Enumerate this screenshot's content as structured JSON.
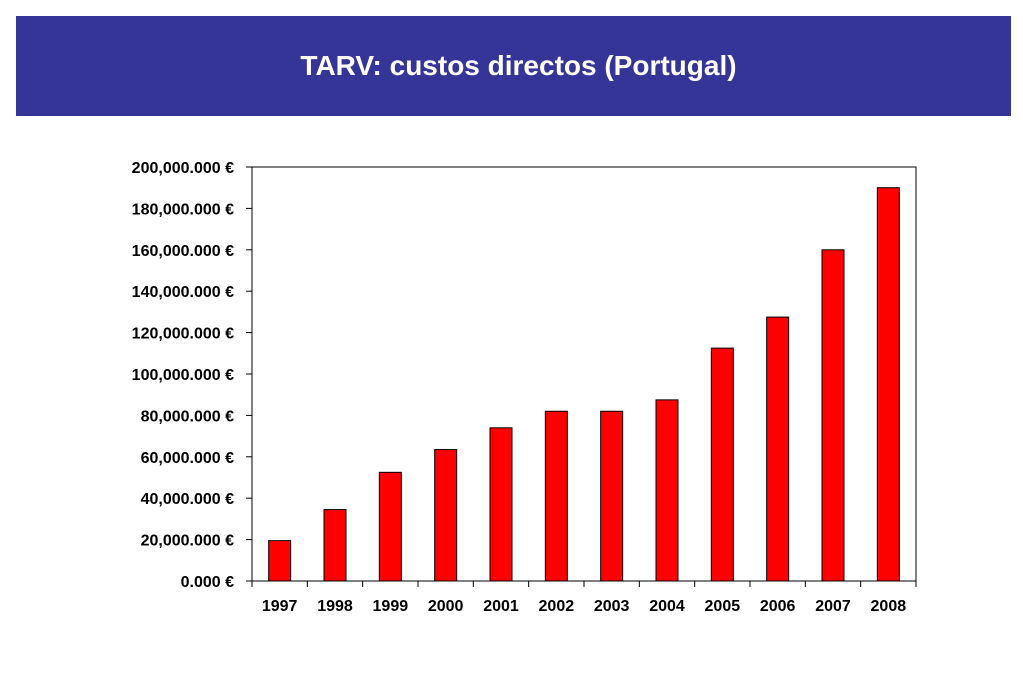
{
  "header": {
    "title": "TARV: custos directos (Portugal)"
  },
  "colors": {
    "banner": "#353598",
    "bar_fill": "#ff0000",
    "bar_stroke": "#000000"
  },
  "chart_data": {
    "type": "bar",
    "categories": [
      "1997",
      "1998",
      "1999",
      "2000",
      "2001",
      "2002",
      "2003",
      "2004",
      "2005",
      "2006",
      "2007",
      "2008"
    ],
    "values": [
      19500,
      34500,
      52500,
      63500,
      74000,
      82000,
      82000,
      87500,
      112500,
      127500,
      160000,
      190000
    ],
    "ylim": [
      0,
      200000
    ],
    "yticks": [
      0,
      20000,
      40000,
      60000,
      80000,
      100000,
      120000,
      140000,
      160000,
      180000,
      200000
    ],
    "ytick_labels": [
      "0.000 €",
      "20,000.000 €",
      "40,000.000 €",
      "60,000.000 €",
      "80,000.000 €",
      "100,000.000 €",
      "120,000.000 €",
      "140,000.000 €",
      "160,000.000 €",
      "180,000.000 €",
      "200,000.000 €"
    ],
    "grid": false,
    "legend": "none"
  }
}
